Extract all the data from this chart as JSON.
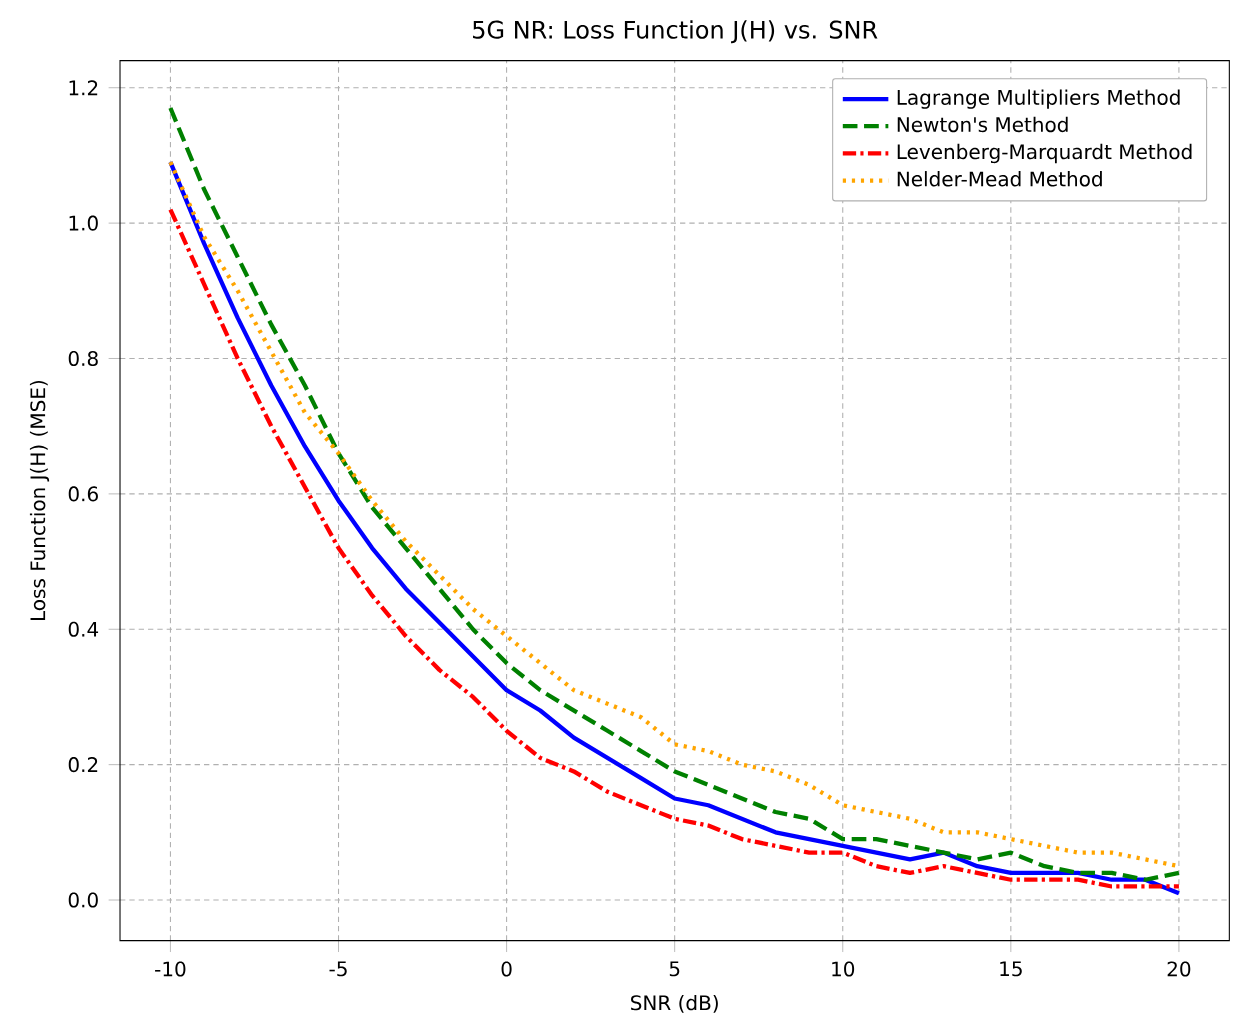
{
  "chart_data": {
    "type": "line",
    "title": "5G NR: Loss Function J(H) vs. SNR",
    "xlabel": "SNR (dB)",
    "ylabel": "Loss Function J(H) (MSE)",
    "x": [
      -10,
      -9,
      -8,
      -7,
      -6,
      -5,
      -4,
      -3,
      -2,
      -1,
      0,
      1,
      2,
      3,
      4,
      5,
      6,
      7,
      8,
      9,
      10,
      11,
      12,
      13,
      14,
      15,
      16,
      17,
      18,
      19,
      20
    ],
    "series": [
      {
        "name": "Lagrange Multipliers Method",
        "color": "#0000ff",
        "line_style": "solid",
        "values": [
          1.09,
          0.97,
          0.86,
          0.76,
          0.67,
          0.59,
          0.52,
          0.46,
          0.41,
          0.36,
          0.31,
          0.28,
          0.24,
          0.21,
          0.18,
          0.15,
          0.14,
          0.12,
          0.1,
          0.09,
          0.08,
          0.07,
          0.06,
          0.07,
          0.05,
          0.04,
          0.04,
          0.04,
          0.03,
          0.03,
          0.01
        ]
      },
      {
        "name": "Newton's Method",
        "color": "#008000",
        "line_style": "dashed",
        "values": [
          1.17,
          1.05,
          0.95,
          0.85,
          0.76,
          0.66,
          0.58,
          0.52,
          0.46,
          0.4,
          0.35,
          0.31,
          0.28,
          0.25,
          0.22,
          0.19,
          0.17,
          0.15,
          0.13,
          0.12,
          0.09,
          0.09,
          0.08,
          0.07,
          0.06,
          0.07,
          0.05,
          0.04,
          0.04,
          0.03,
          0.04
        ]
      },
      {
        "name": "Levenberg-Marquardt Method",
        "color": "#ff0000",
        "line_style": "dashdot",
        "values": [
          1.02,
          0.91,
          0.8,
          0.7,
          0.61,
          0.52,
          0.45,
          0.39,
          0.34,
          0.3,
          0.25,
          0.21,
          0.19,
          0.16,
          0.14,
          0.12,
          0.11,
          0.09,
          0.08,
          0.07,
          0.07,
          0.05,
          0.04,
          0.05,
          0.04,
          0.03,
          0.03,
          0.03,
          0.02,
          0.02,
          0.02
        ]
      },
      {
        "name": "Nelder-Mead Method",
        "color": "#ffa500",
        "line_style": "dotted",
        "values": [
          1.09,
          0.98,
          0.9,
          0.81,
          0.72,
          0.66,
          0.59,
          0.53,
          0.48,
          0.43,
          0.39,
          0.35,
          0.31,
          0.29,
          0.27,
          0.23,
          0.22,
          0.2,
          0.19,
          0.17,
          0.14,
          0.13,
          0.12,
          0.1,
          0.1,
          0.09,
          0.08,
          0.07,
          0.07,
          0.06,
          0.05
        ]
      }
    ],
    "xlim": [
      -11.5,
      21.5
    ],
    "ylim": [
      -0.06,
      1.24
    ],
    "xticks": [
      -10,
      -5,
      0,
      5,
      10,
      15,
      20
    ],
    "yticks": [
      {
        "value": 0,
        "label": "0.0"
      },
      {
        "value": 0.2,
        "label": "0.2"
      },
      {
        "value": 0.4,
        "label": "0.4"
      },
      {
        "value": 0.6,
        "label": "0.6"
      },
      {
        "value": 0.8,
        "label": "0.8"
      },
      {
        "value": 1.0,
        "label": "1.0"
      },
      {
        "value": 1.2,
        "label": "1.2"
      }
    ],
    "grid": true,
    "legend": "top right",
    "marker": "none"
  }
}
